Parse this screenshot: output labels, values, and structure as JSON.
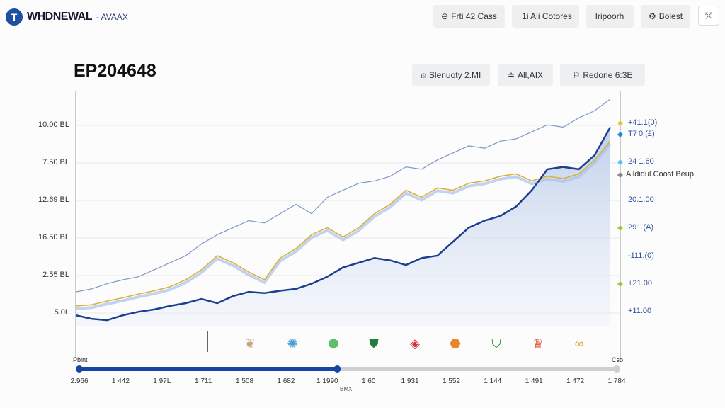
{
  "header": {
    "logo_mark": "T",
    "brand": "WHDNEWAL",
    "brand_sub": "- AVAAX",
    "buttons": [
      {
        "icon": "circle-icon",
        "label": "Frti 42 Cass"
      },
      {
        "icon": "grid-icon",
        "label": "1i Ali Cotores"
      },
      {
        "label": "Iripoorh"
      },
      {
        "icon": "gear-icon",
        "label": "Bolest"
      }
    ],
    "close_icon": "expand-icon"
  },
  "main": {
    "title": "EP204648",
    "controls": [
      {
        "icon": "person-icon",
        "label": "Slenuoty 2.MI"
      },
      {
        "icon": "list-icon",
        "label": "All,AIX"
      },
      {
        "icon": "flag-icon",
        "label": "Redone 6:3E"
      }
    ]
  },
  "chart_data": {
    "type": "line",
    "title": "EP204648",
    "ylim": [
      0,
      100
    ],
    "y_tick_labels": [
      "10.00 BL",
      "7.50 BL",
      "12.69 BL",
      "16.50 BL",
      "2.55 BL",
      "5.0L"
    ],
    "right_labels": [
      {
        "text": "+41.1(0)",
        "color": "#e8c23a"
      },
      {
        "text": "T7 0 (£)",
        "color": "#1e88e5"
      },
      {
        "text": "24 1.60",
        "color": "#4fc3f7"
      },
      {
        "text": "Aildidul Coost Beup",
        "color": "#888888"
      },
      {
        "text": "20.1.00",
        "color": null
      },
      {
        "text": "291.(A)",
        "color": "#9ccc3a"
      },
      {
        "text": "-111.(0)",
        "color": null
      },
      {
        "text": "+21.00",
        "color": "#9ccc3a"
      },
      {
        "text": "+11.00",
        "color": null
      }
    ],
    "series": [
      {
        "name": "upper",
        "color": "#7f97c9",
        "values": [
          14.5,
          15.8,
          18,
          19.7,
          21,
          24,
          27,
          30,
          35,
          39,
          42,
          45,
          44,
          48,
          52,
          48,
          55,
          58,
          61,
          62,
          64,
          68,
          67,
          71,
          74,
          77,
          76,
          79,
          80,
          83,
          86,
          85,
          89,
          92,
          97
        ]
      },
      {
        "name": "gold",
        "color": "#d9b13b",
        "values": [
          8.5,
          9,
          10.6,
          12,
          13.6,
          15,
          16.7,
          19.7,
          24,
          30,
          27,
          23,
          19.7,
          29,
          33,
          39,
          42,
          38,
          42,
          48,
          52,
          58,
          55,
          59,
          58,
          61,
          62,
          64,
          65,
          62,
          64,
          63,
          65,
          71,
          79
        ]
      },
      {
        "name": "main",
        "color": "#1c3f8f",
        "values": [
          4.5,
          3,
          2.4,
          4.5,
          6,
          7,
          8.5,
          9.7,
          11.5,
          9.7,
          12.7,
          14.5,
          14,
          15,
          15.8,
          18,
          21,
          25,
          27,
          29,
          28,
          26,
          29,
          30,
          36,
          42,
          45,
          47,
          51,
          58,
          67,
          68,
          67,
          73,
          85
        ]
      }
    ],
    "timeline": {
      "start_label": "Pbint",
      "end_label": "Cso",
      "progress": 0.48,
      "marker_label": "1990",
      "marker_sub": "BMX",
      "ticks": [
        "2.966",
        "1 442",
        "1 97L",
        "1 711",
        "1 508",
        "1 682",
        "1 1990",
        "1 60",
        "1 931",
        "1 552",
        "1 144",
        "1 491",
        "1 472",
        "1 784"
      ],
      "icons": [
        "feather-icon",
        "sun-icon",
        "shield-green-icon",
        "shield-darkgreen-icon",
        "diamond-red-icon",
        "badge-orange-icon",
        "shield-yellow-icon",
        "crown-red-icon",
        "ribbon-gold-icon"
      ]
    }
  }
}
